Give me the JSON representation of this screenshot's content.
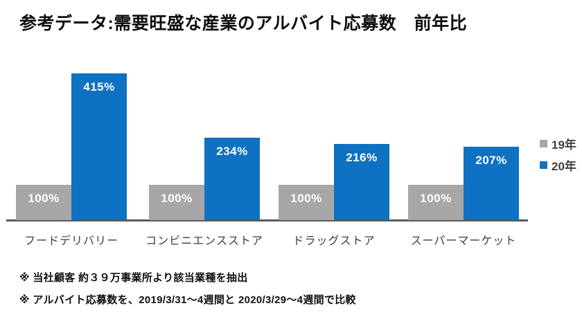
{
  "title": "参考データ:需要旺盛な産業のアルバイト応募数　前年比",
  "chart_data": {
    "type": "bar",
    "title": "参考データ:需要旺盛な産業のアルバイト応募数　前年比",
    "categories": [
      "フードデリバリー",
      "コンビニエンスストア",
      "ドラッグストア",
      "スーパーマーケット"
    ],
    "series": [
      {
        "name": "19年",
        "color": "#a7a7a7",
        "values": [
          100,
          100,
          100,
          100
        ]
      },
      {
        "name": "20年",
        "color": "#0e71c1",
        "values": [
          415,
          234,
          216,
          207
        ]
      }
    ],
    "value_suffix": "%",
    "xlabel": "",
    "ylabel": "",
    "ylim": [
      0,
      430
    ],
    "grid": false,
    "legend_position": "right",
    "axis_line_color": "#595959",
    "value_label_color": "#ffffff"
  },
  "footnotes": [
    "※ 当社顧客 約３９万事業所より該当業種を抽出",
    "※ アルバイト応募数を、2019/3/31～4週間と 2020/3/29～4週間で比較"
  ]
}
